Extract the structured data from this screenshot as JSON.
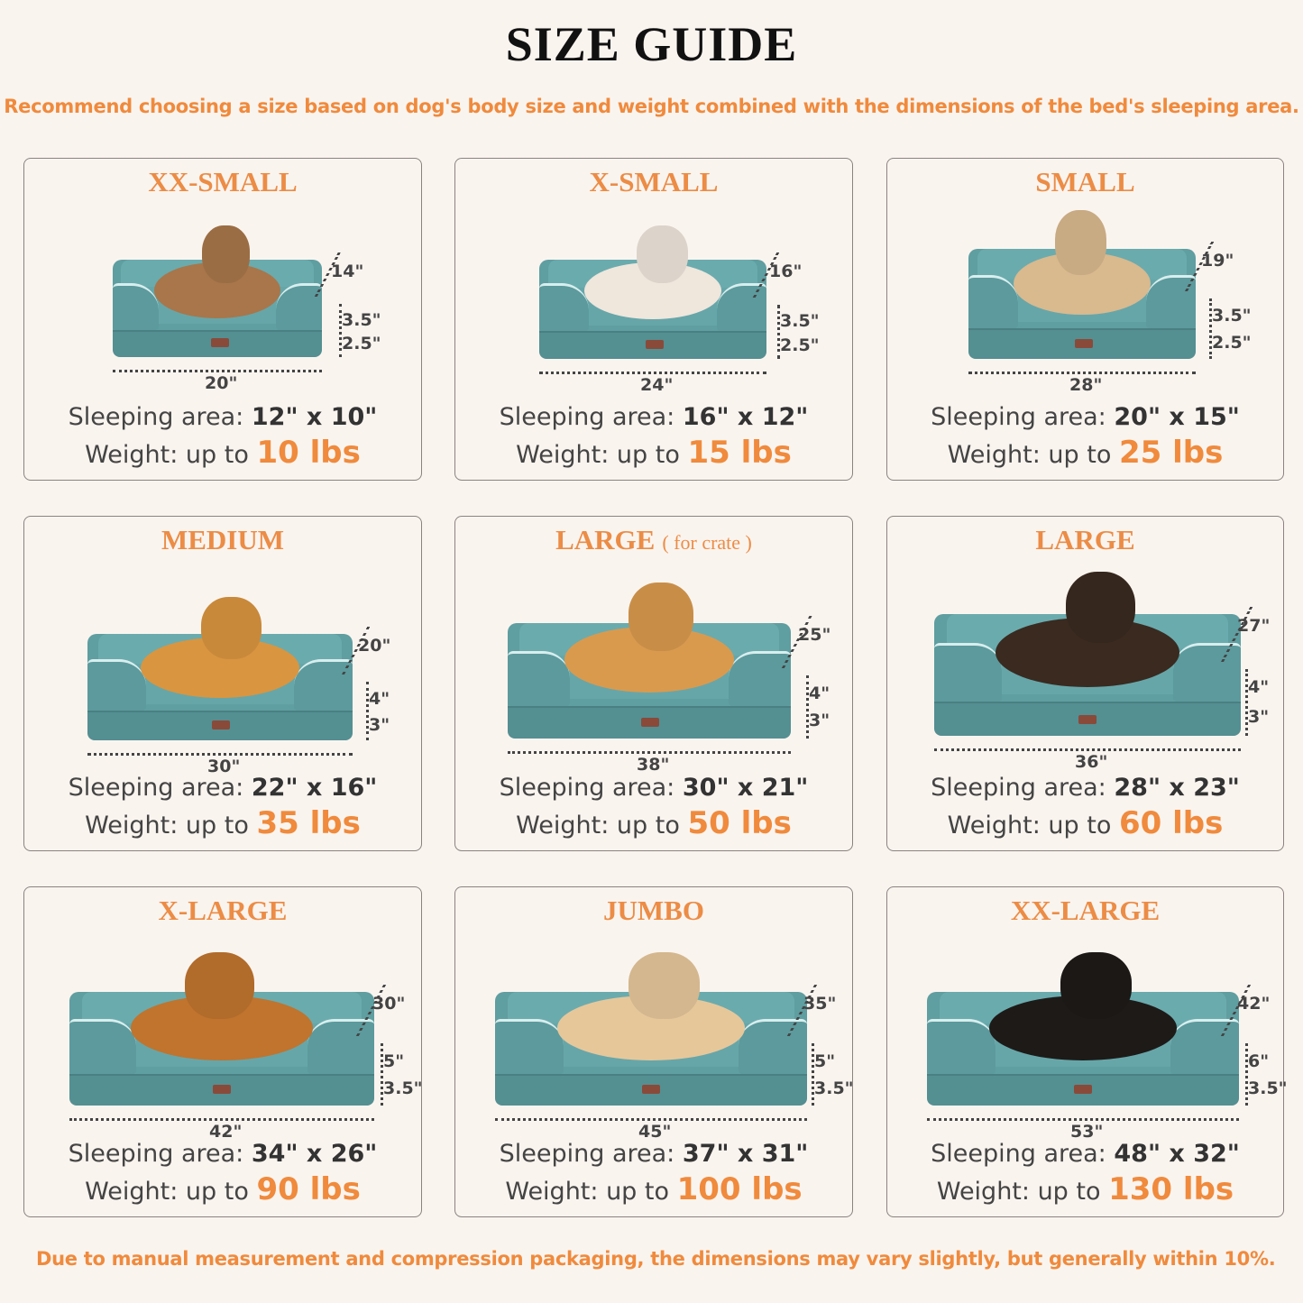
{
  "title": "SIZE GUIDE",
  "subtitle": "Recommend choosing a size based on dog's body size and weight combined with the dimensions of the bed's sleeping area.",
  "footer": "Due to manual measurement and compression packaging, the dimensions may vary slightly, but generally within 10%.",
  "labels": {
    "sleeping": "Sleeping area:",
    "weight": "Weight:  up to"
  },
  "colors": {
    "accent": "#f08a3c",
    "bed": "#5f9ea1",
    "border": "#8a8380"
  },
  "sizes": [
    {
      "name": "XX-SMALL",
      "note": "",
      "depth": "14\"",
      "bolster": "3.5\"",
      "base": "2.5\"",
      "width": "20\"",
      "sleeping": "12\" x 10\"",
      "weight": "10 lbs",
      "pet": "cat",
      "pet_color": "#a8764a"
    },
    {
      "name": "X-SMALL",
      "note": "",
      "depth": "16\"",
      "bolster": "3.5\"",
      "base": "2.5\"",
      "width": "24\"",
      "sleeping": "16\" x 12\"",
      "weight": "15 lbs",
      "pet": "dog",
      "pet_color": "#efe6dc"
    },
    {
      "name": "SMALL",
      "note": "",
      "depth": "19\"",
      "bolster": "3.5\"",
      "base": "2.5\"",
      "width": "28\"",
      "sleeping": "20\" x 15\"",
      "weight": "25 lbs",
      "pet": "dog",
      "pet_color": "#d9b98e"
    },
    {
      "name": "MEDIUM",
      "note": "",
      "depth": "20\"",
      "bolster": "4\"",
      "base": "3\"",
      "width": "30\"",
      "sleeping": "22\" x 16\"",
      "weight": "35 lbs",
      "pet": "dog",
      "pet_color": "#d9953f"
    },
    {
      "name": "LARGE",
      "note": "( for crate )",
      "depth": "25\"",
      "bolster": "4\"",
      "base": "3\"",
      "width": "38\"",
      "sleeping": "30\" x 21\"",
      "weight": "50 lbs",
      "pet": "dog",
      "pet_color": "#d99a4e"
    },
    {
      "name": "LARGE",
      "note": "",
      "depth": "27\"",
      "bolster": "4\"",
      "base": "3\"",
      "width": "36\"",
      "sleeping": "28\" x 23\"",
      "weight": "60 lbs",
      "pet": "dog",
      "pet_color": "#3a2a20"
    },
    {
      "name": "X-LARGE",
      "note": "",
      "depth": "30\"",
      "bolster": "5\"",
      "base": "3.5\"",
      "width": "42\"",
      "sleeping": "34\" x 26\"",
      "weight": "90 lbs",
      "pet": "dog",
      "pet_color": "#c0742e"
    },
    {
      "name": "JUMBO",
      "note": "",
      "depth": "35\"",
      "bolster": "5\"",
      "base": "3.5\"",
      "width": "45\"",
      "sleeping": "37\" x 31\"",
      "weight": "100 lbs",
      "pet": "dog",
      "pet_color": "#e6c79a"
    },
    {
      "name": "XX-LARGE",
      "note": "",
      "depth": "42\"",
      "bolster": "6\"",
      "base": "3.5\"",
      "width": "53\"",
      "sleeping": "48\" x 32\"",
      "weight": "130 lbs",
      "pet": "dog",
      "pet_color": "#1e1a18"
    }
  ]
}
